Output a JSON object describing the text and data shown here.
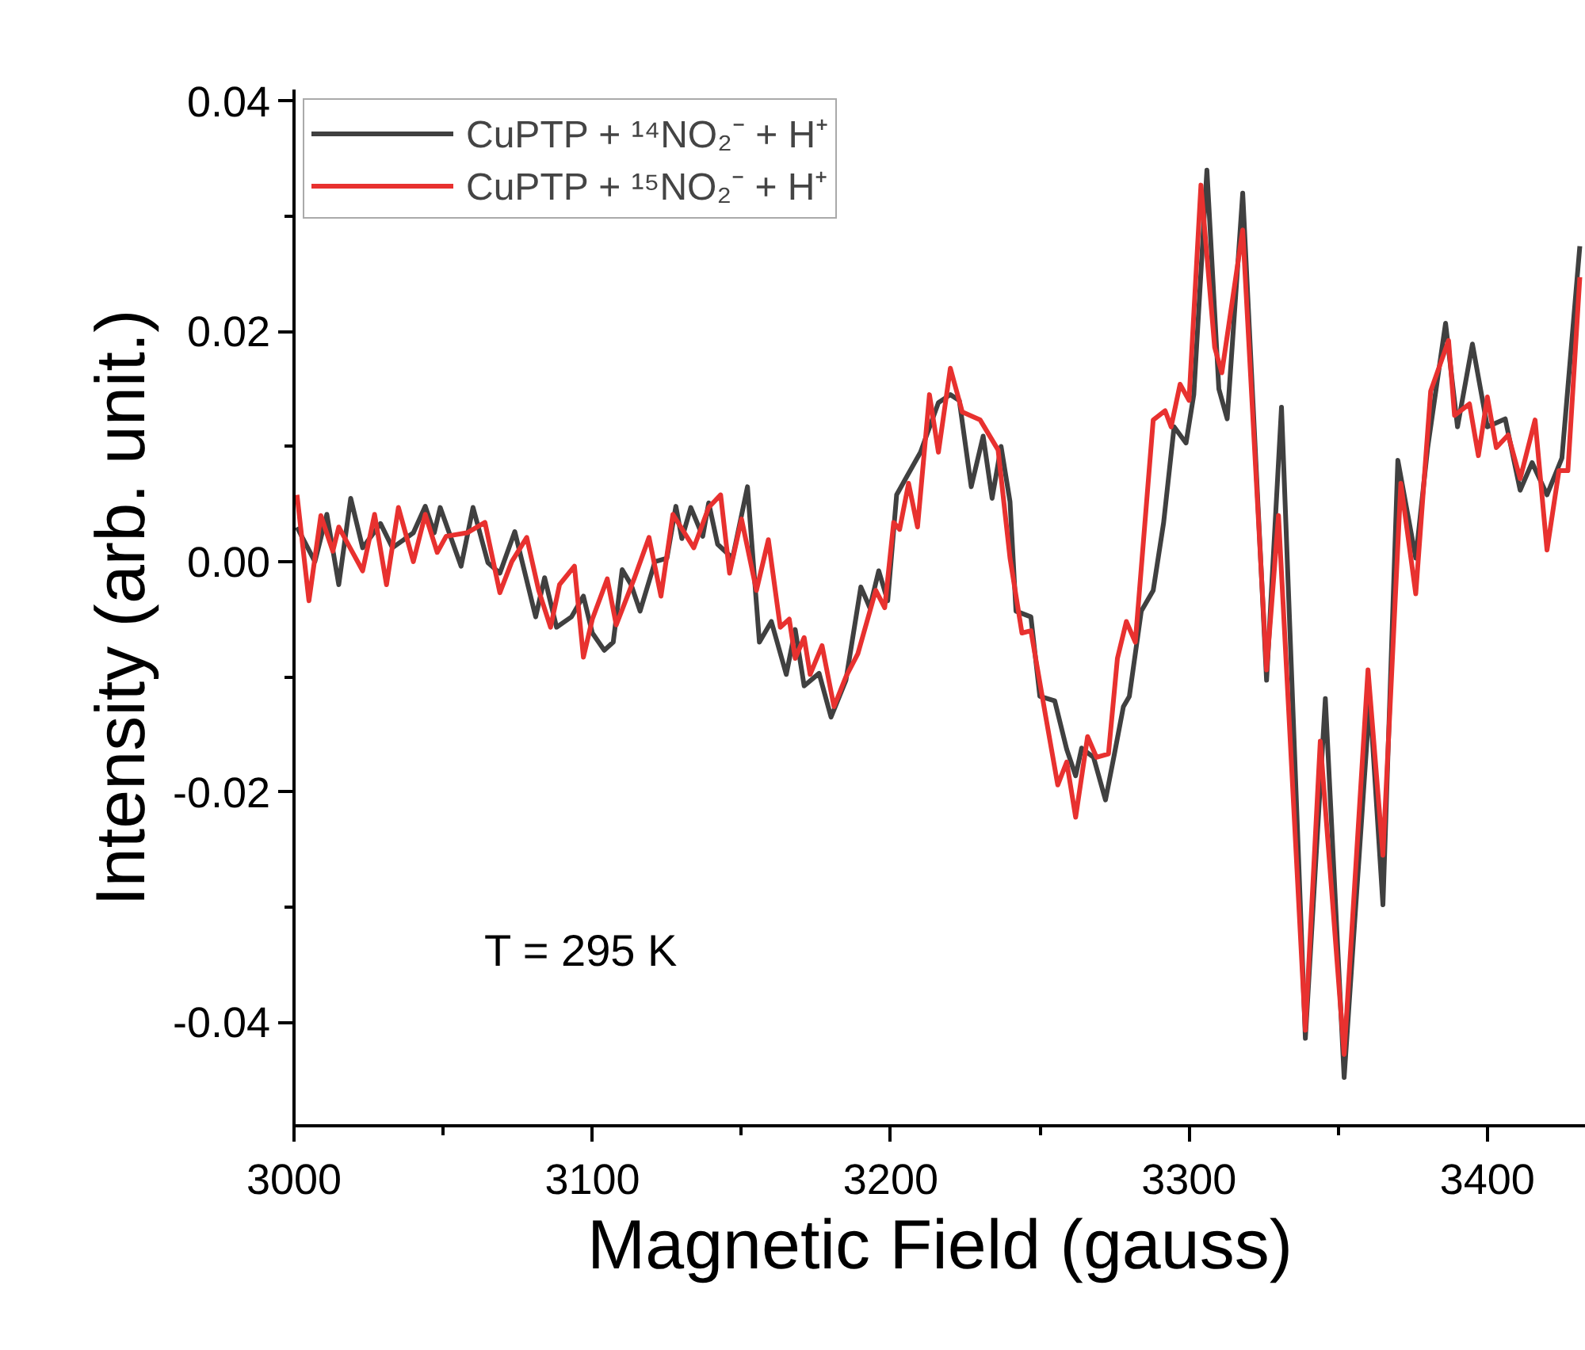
{
  "chart_data": {
    "type": "line",
    "xlabel": "Magnetic Field (gauss)",
    "ylabel": "Intensity (arb. unit.)",
    "xlim": [
      3000,
      3433
    ],
    "ylim": [
      -0.049,
      0.041
    ],
    "xticks": [
      3000,
      {
        "value": 3050,
        "label": null
      },
      3100,
      {
        "value": 3150,
        "label": null
      },
      3200,
      {
        "value": 3250,
        "label": null
      },
      3300,
      {
        "value": 3350,
        "label": null
      },
      3400
    ],
    "yticks": [
      {
        "value": -0.04,
        "label": "-0.04"
      },
      {
        "value": -0.03,
        "label": null
      },
      {
        "value": -0.02,
        "label": "-0.02"
      },
      {
        "value": -0.01,
        "label": null
      },
      {
        "value": 0,
        "label": "0.00"
      },
      {
        "value": 0.01,
        "label": null
      },
      {
        "value": 0.02,
        "label": "0.02"
      },
      {
        "value": 0.03,
        "label": null
      },
      {
        "value": 0.04,
        "label": "0.04"
      }
    ],
    "grid": false,
    "legend": "top left",
    "line_style": "solid",
    "marker": "none",
    "annotations": [
      "T = 295 K"
    ],
    "series": [
      {
        "name": "CuPTP + ¹⁴NO₂⁻ + H⁺",
        "color": "#404040",
        "x": [
          3001,
          3007,
          3011,
          3015,
          3019,
          3023,
          3029,
          3033,
          3040,
          3044,
          3047,
          3049,
          3056,
          3060,
          3065,
          3069,
          3074,
          3081,
          3084,
          3088,
          3093,
          3097,
          3100,
          3104,
          3107,
          3110,
          3113,
          3116,
          3121,
          3125,
          3128,
          3130,
          3133,
          3137,
          3139,
          3142,
          3147,
          3152,
          3156,
          3160,
          3165,
          3168,
          3171,
          3176,
          3180,
          3185,
          3190,
          3193,
          3196,
          3199,
          3202,
          3205,
          3210,
          3216,
          3220,
          3223,
          3227,
          3231,
          3234,
          3237,
          3240,
          3242,
          3247,
          3250,
          3255,
          3259,
          3262,
          3264,
          3268,
          3272,
          3275,
          3278,
          3280,
          3284,
          3288,
          3291.5,
          3295,
          3299,
          3301.6,
          3306,
          3310,
          3312.8,
          3318,
          3326,
          3331,
          3339,
          3345.7,
          3352,
          3360.6,
          3365,
          3370,
          3376,
          3380,
          3386,
          3390,
          3395,
          3400,
          3406,
          3411,
          3415,
          3420,
          3425,
          3431
        ],
        "values": [
          0.003,
          0.0,
          0.0041,
          -0.002,
          0.0055,
          0.0012,
          0.0033,
          0.0012,
          0.0025,
          0.0048,
          0.0025,
          0.0047,
          -0.0004,
          0.0047,
          -0.0001,
          -0.001,
          0.0026,
          -0.0048,
          -0.0014,
          -0.0057,
          -0.0048,
          -0.003,
          -0.0062,
          -0.0077,
          -0.007,
          -0.0007,
          -0.002,
          -0.0043,
          0.0,
          0.0003,
          0.0048,
          0.002,
          0.0047,
          0.0022,
          0.0051,
          0.0015,
          0.0003,
          0.0065,
          -0.007,
          -0.0052,
          -0.0098,
          -0.0059,
          -0.0108,
          -0.0097,
          -0.0135,
          -0.0103,
          -0.0022,
          -0.004,
          -0.0008,
          -0.0034,
          0.0058,
          0.0072,
          0.0095,
          0.0138,
          0.0145,
          0.014,
          0.0065,
          0.0109,
          0.0055,
          0.01,
          0.0052,
          -0.0043,
          -0.0048,
          -0.0117,
          -0.0121,
          -0.0163,
          -0.0186,
          -0.0162,
          -0.017,
          -0.0207,
          -0.0167,
          -0.0126,
          -0.0117,
          -0.0043,
          -0.0025,
          0.0034,
          0.0117,
          0.0103,
          0.0145,
          0.034,
          0.015,
          0.0124,
          0.032,
          -0.0103,
          0.0134,
          -0.0414,
          -0.0119,
          -0.0448,
          -0.0119,
          -0.0298,
          0.0088,
          0.0003,
          0.0099,
          0.0207,
          0.0117,
          0.0189,
          0.0117,
          0.0124,
          0.0062,
          0.0086,
          0.0058,
          0.009,
          0.0274
        ]
      },
      {
        "name": "CuPTP + ¹⁵NO₂⁻ + H⁺",
        "color": "#e8312f",
        "x": [
          3001,
          3005,
          3009,
          3013,
          3015,
          3019,
          3023,
          3027,
          3031,
          3035,
          3040,
          3044,
          3048,
          3051,
          3058,
          3064,
          3069,
          3073,
          3078,
          3082,
          3086,
          3089,
          3094,
          3097,
          3100,
          3105,
          3108,
          3114,
          3119,
          3123,
          3127,
          3134,
          3139,
          3143,
          3146,
          3150,
          3155,
          3159,
          3163,
          3166,
          3168,
          3171,
          3173,
          3177,
          3181,
          3185,
          3189,
          3195,
          3198,
          3201,
          3203,
          3206,
          3209,
          3213,
          3216,
          3220,
          3224,
          3230,
          3236,
          3240,
          3244,
          3247,
          3252,
          3256,
          3259,
          3262,
          3266,
          3269,
          3273,
          3276,
          3279,
          3282,
          3288,
          3292,
          3294,
          3297,
          3300,
          3304,
          3308.6,
          3311,
          3318,
          3326,
          3330,
          3339,
          3344,
          3352,
          3360,
          3365,
          3371,
          3376,
          3381,
          3387,
          3389,
          3394,
          3397,
          3400,
          3403,
          3407,
          3411,
          3416,
          3420,
          3424,
          3427,
          3431
        ],
        "values": [
          0.0058,
          -0.0034,
          0.004,
          0.0009,
          0.003,
          0.0011,
          -0.0008,
          0.0041,
          -0.002,
          0.0047,
          0.0,
          0.0041,
          0.0008,
          0.0022,
          0.0025,
          0.0034,
          -0.0027,
          0.0,
          0.0021,
          -0.0025,
          -0.0057,
          -0.002,
          -0.0004,
          -0.0083,
          -0.005,
          -0.0015,
          -0.0055,
          -0.0015,
          0.0021,
          -0.003,
          0.0041,
          0.0012,
          0.0047,
          0.0058,
          -0.001,
          0.0037,
          -0.0025,
          0.0019,
          -0.0057,
          -0.005,
          -0.0084,
          -0.0066,
          -0.0098,
          -0.0073,
          -0.0126,
          -0.01,
          -0.008,
          -0.0025,
          -0.004,
          0.0034,
          0.0028,
          0.0068,
          0.003,
          0.0145,
          0.0095,
          0.0168,
          0.013,
          0.0123,
          0.0097,
          0.0003,
          -0.0062,
          -0.006,
          -0.0135,
          -0.0194,
          -0.0174,
          -0.0222,
          -0.0152,
          -0.017,
          -0.0167,
          -0.0084,
          -0.0052,
          -0.007,
          0.0123,
          0.0131,
          0.0117,
          0.0154,
          0.014,
          0.0327,
          0.0186,
          0.0164,
          0.0288,
          -0.0094,
          0.004,
          -0.0407,
          -0.0156,
          -0.0428,
          -0.0094,
          -0.0255,
          0.0068,
          -0.0028,
          0.0148,
          0.0192,
          0.0127,
          0.0137,
          0.0092,
          0.0143,
          0.0099,
          0.011,
          0.0072,
          0.0123,
          0.001,
          0.0079,
          0.0079,
          0.0247
        ]
      }
    ]
  }
}
